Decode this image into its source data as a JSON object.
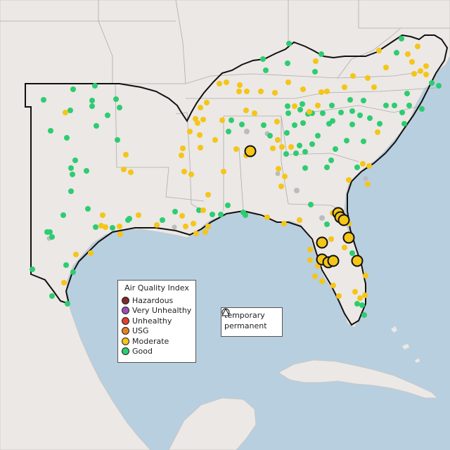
{
  "legend": {
    "title": "Air Quality Index",
    "categories": [
      {
        "label": "Hazardous",
        "color": "#7e2a2a"
      },
      {
        "label": "Very Unhealthy",
        "color": "#9b4fb5"
      },
      {
        "label": "Unhealthy",
        "color": "#e0402f"
      },
      {
        "label": "USG",
        "color": "#e8821e"
      },
      {
        "label": "Moderate",
        "color": "#f5c518"
      },
      {
        "label": "Good",
        "color": "#2ecc71"
      }
    ]
  },
  "shape_legend": {
    "temporary": "temporary",
    "permanent": "permanent"
  },
  "colors": {
    "water": "#b8cfe0",
    "land": "#ebe8e5",
    "no_data_monitor": "#bcbcbc"
  }
}
